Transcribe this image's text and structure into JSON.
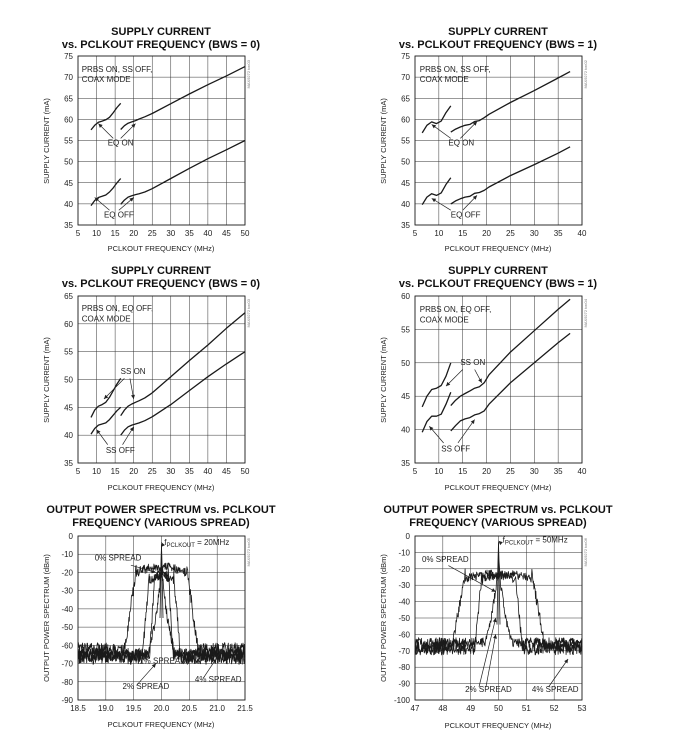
{
  "chart_data": [
    {
      "type": "line",
      "title": [
        "SUPPLY CURRENT",
        "vs. PCLKOUT FREQUENCY (BWS = 0)"
      ],
      "xlabel": "PCLKOUT FREQUENCY (MHz)",
      "ylabel": "SUPPLY CURRENT (mA)",
      "xlim": [
        5,
        50
      ],
      "ylim": [
        35,
        75
      ],
      "xticks": [
        5,
        10,
        15,
        20,
        25,
        30,
        35,
        40,
        45,
        50
      ],
      "yticks": [
        35,
        40,
        45,
        50,
        55,
        60,
        65,
        70,
        75
      ],
      "code": "MAX9272 toc03",
      "annotations": [
        {
          "text": "PRBS ON, SS OFF,",
          "x": 6,
          "y": 71.2
        },
        {
          "text": "COAX MODE",
          "x": 6,
          "y": 68.8
        },
        {
          "text": "EQ ON",
          "x": 13,
          "y": 53.8
        },
        {
          "text": "EQ OFF",
          "x": 12,
          "y": 36.8
        }
      ],
      "arrows": [
        {
          "from": [
            14.5,
            55.5
          ],
          "to": [
            10.5,
            59
          ]
        },
        {
          "from": [
            16.5,
            55.5
          ],
          "to": [
            20.5,
            59
          ]
        },
        {
          "from": [
            13.5,
            38.5
          ],
          "to": [
            9.5,
            41.5
          ]
        },
        {
          "from": [
            16,
            38.5
          ],
          "to": [
            20,
            41.5
          ]
        }
      ],
      "series": [
        {
          "x": [
            8.5,
            9.5,
            10.5,
            11.5,
            12.5,
            13.5,
            14.5,
            15.5,
            16.5
          ],
          "y": [
            57.5,
            58.6,
            59.3,
            59.6,
            59.9,
            60.5,
            61.6,
            62.8,
            63.8
          ]
        },
        {
          "x": [
            16.5,
            17.5,
            18.5,
            19.5,
            20.5,
            21.5,
            23,
            25,
            30,
            35,
            40,
            45,
            50
          ],
          "y": [
            57.6,
            58.5,
            59.1,
            59.4,
            59.7,
            60.1,
            60.6,
            61.4,
            63.7,
            66.0,
            68.2,
            70.3,
            72.5
          ]
        },
        {
          "x": [
            8.5,
            9.5,
            10.5,
            11.5,
            12.5,
            13.5,
            14.5,
            15.5,
            16.5
          ],
          "y": [
            39.6,
            40.8,
            41.5,
            41.8,
            42.1,
            42.8,
            43.8,
            45.0,
            46.0
          ]
        },
        {
          "x": [
            16.5,
            17.5,
            18.5,
            19.5,
            20.5,
            21.5,
            23,
            25,
            30,
            35,
            40,
            45,
            50
          ],
          "y": [
            39.9,
            40.9,
            41.6,
            41.9,
            42.2,
            42.4,
            42.8,
            43.6,
            46.0,
            48.4,
            50.7,
            52.8,
            55.0
          ]
        }
      ]
    },
    {
      "type": "line",
      "title": [
        "SUPPLY CURRENT",
        "vs. PCLKOUT FREQUENCY (BWS = 1)"
      ],
      "xlabel": "PCLKOUT FREQUENCY (MHz)",
      "ylabel": "SUPPLY CURRENT (mA)",
      "xlim": [
        5,
        40
      ],
      "ylim": [
        35,
        75
      ],
      "xticks": [
        5,
        10,
        15,
        20,
        25,
        30,
        35,
        40
      ],
      "yticks": [
        35,
        40,
        45,
        50,
        55,
        60,
        65,
        70,
        75
      ],
      "code": "MAX9272 toc02",
      "annotations": [
        {
          "text": "PRBS ON, SS OFF,",
          "x": 6,
          "y": 71.2
        },
        {
          "text": "COAX MODE",
          "x": 6,
          "y": 68.8
        },
        {
          "text": "EQ ON",
          "x": 12,
          "y": 53.8
        },
        {
          "text": "EQ OFF",
          "x": 12.5,
          "y": 36.8
        }
      ],
      "arrows": [
        {
          "from": [
            12.5,
            55.5
          ],
          "to": [
            8.5,
            58.8
          ]
        },
        {
          "from": [
            14.5,
            55.5
          ],
          "to": [
            18,
            59.5
          ]
        },
        {
          "from": [
            12.5,
            38.5
          ],
          "to": [
            8.5,
            41.3
          ]
        },
        {
          "from": [
            15,
            38.5
          ],
          "to": [
            18,
            42
          ]
        }
      ],
      "series": [
        {
          "x": [
            6.5,
            7.5,
            8.5,
            9.5,
            10.5,
            11.5,
            12.5
          ],
          "y": [
            56.8,
            58.6,
            59.4,
            59.0,
            59.6,
            61.6,
            63.2
          ]
        },
        {
          "x": [
            12.5,
            13.5,
            14.5,
            15.5,
            16.5,
            17.5,
            18.5,
            19.5,
            20.5,
            25,
            30,
            35,
            37.5
          ],
          "y": [
            57.0,
            57.7,
            58.2,
            58.6,
            58.8,
            59.5,
            59.7,
            60.4,
            61.2,
            64.0,
            66.8,
            69.8,
            71.3
          ]
        },
        {
          "x": [
            6.5,
            7.5,
            8.5,
            9.5,
            10.5,
            11.5,
            12.5
          ],
          "y": [
            39.8,
            41.6,
            42.4,
            42.0,
            42.6,
            44.6,
            46.2
          ]
        },
        {
          "x": [
            12.5,
            13.5,
            14.5,
            15.5,
            16.5,
            17.5,
            18.5,
            19.5,
            20.5,
            25,
            30,
            35,
            37.5
          ],
          "y": [
            40.0,
            40.7,
            41.2,
            41.6,
            41.8,
            42.5,
            42.7,
            43.2,
            44.0,
            46.7,
            49.3,
            52.0,
            53.5
          ]
        }
      ]
    },
    {
      "type": "line",
      "title": [
        "SUPPLY CURRENT",
        "vs. PCLKOUT FREQUENCY (BWS = 0)"
      ],
      "xlabel": "PCLKOUT FREQUENCY (MHz)",
      "ylabel": "SUPPLY CURRENT (mA)",
      "xlim": [
        5,
        50
      ],
      "ylim": [
        35,
        65
      ],
      "xticks": [
        5,
        10,
        15,
        20,
        25,
        30,
        35,
        40,
        45,
        50
      ],
      "yticks": [
        35,
        40,
        45,
        50,
        55,
        60,
        65
      ],
      "code": "MAX9272 toc03",
      "annotations": [
        {
          "text": "PRBS ON, EQ OFF,",
          "x": 6,
          "y": 62.3
        },
        {
          "text": "COAX MODE",
          "x": 6,
          "y": 60.4
        },
        {
          "text": "SS ON",
          "x": 16.5,
          "y": 51.0
        },
        {
          "text": "SS OFF",
          "x": 12.5,
          "y": 36.8
        }
      ],
      "arrows": [
        {
          "from": [
            17.5,
            50.2
          ],
          "to": [
            12,
            46.5
          ]
        },
        {
          "from": [
            19,
            50.2
          ],
          "to": [
            20,
            46.5
          ]
        },
        {
          "from": [
            13,
            38.3
          ],
          "to": [
            10,
            41
          ]
        },
        {
          "from": [
            17,
            38.3
          ],
          "to": [
            20,
            41.5
          ]
        }
      ],
      "series": [
        {
          "x": [
            8.5,
            9.5,
            10.5,
            11.5,
            12.5,
            13.5,
            14.5,
            15.5,
            16.5
          ],
          "y": [
            43.2,
            44.5,
            45.2,
            45.5,
            45.9,
            46.8,
            48.0,
            49.2,
            50.2
          ]
        },
        {
          "x": [
            16.5,
            17.5,
            18.5,
            19.5,
            20.5,
            21.5,
            23,
            25,
            30,
            35,
            40,
            45,
            50
          ],
          "y": [
            43.5,
            44.5,
            45.2,
            45.6,
            45.9,
            46.2,
            46.7,
            47.6,
            50.5,
            53.4,
            56.2,
            59.2,
            62.0
          ]
        },
        {
          "x": [
            8.5,
            9.5,
            10.5,
            11.5,
            12.5,
            13.5,
            14.5,
            15.5,
            16.5
          ],
          "y": [
            40.2,
            41.2,
            41.8,
            42.0,
            42.2,
            42.8,
            43.6,
            44.4,
            45.0
          ]
        },
        {
          "x": [
            16.5,
            17.5,
            18.5,
            19.5,
            20.5,
            21.5,
            23,
            25,
            30,
            35,
            40,
            45,
            50
          ],
          "y": [
            40.0,
            40.9,
            41.5,
            41.8,
            42.0,
            42.2,
            42.6,
            43.3,
            45.5,
            48.0,
            50.5,
            52.8,
            55.0
          ]
        }
      ]
    },
    {
      "type": "line",
      "title": [
        "SUPPLY CURRENT",
        "vs. PCLKOUT FREQUENCY (BWS = 1)"
      ],
      "xlabel": "PCLKOUT FREQUENCY (MHz)",
      "ylabel": "SUPPLY CURRENT (mA)",
      "xlim": [
        5,
        40
      ],
      "ylim": [
        35,
        60
      ],
      "xticks": [
        5,
        10,
        15,
        20,
        25,
        30,
        35,
        40
      ],
      "yticks": [
        35,
        40,
        45,
        50,
        55,
        60
      ],
      "code": "MAX9272 toc04",
      "annotations": [
        {
          "text": "PRBS ON, EQ OFF,",
          "x": 6,
          "y": 57.6
        },
        {
          "text": "COAX MODE",
          "x": 6,
          "y": 56.0
        },
        {
          "text": "SS ON",
          "x": 14.5,
          "y": 49.7
        },
        {
          "text": "SS OFF",
          "x": 10.5,
          "y": 36.7
        }
      ],
      "arrows": [
        {
          "from": [
            15,
            49
          ],
          "to": [
            11.5,
            46.5
          ]
        },
        {
          "from": [
            17.5,
            49
          ],
          "to": [
            19,
            47
          ]
        },
        {
          "from": [
            11,
            38
          ],
          "to": [
            8,
            40.5
          ]
        },
        {
          "from": [
            14,
            38
          ],
          "to": [
            17.5,
            41.5
          ]
        }
      ],
      "series": [
        {
          "x": [
            6.5,
            7.5,
            8.5,
            9.5,
            10.5,
            11.5,
            12.5
          ],
          "y": [
            43.4,
            45.0,
            46.0,
            46.2,
            46.6,
            48.0,
            50.0
          ]
        },
        {
          "x": [
            12.5,
            13.5,
            14.5,
            15.5,
            16.5,
            17.5,
            18.5,
            19.5,
            20.5,
            25,
            30,
            35,
            37.5
          ],
          "y": [
            43.6,
            44.4,
            45.0,
            45.4,
            45.8,
            46.2,
            46.4,
            47.0,
            48.2,
            51.6,
            54.8,
            58.0,
            59.5
          ]
        },
        {
          "x": [
            6.5,
            7.5,
            8.5,
            9.5,
            10.5,
            11.5,
            12.5
          ],
          "y": [
            39.6,
            41.2,
            42.0,
            42.0,
            42.3,
            43.8,
            45.6
          ]
        },
        {
          "x": [
            12.5,
            13.5,
            14.5,
            15.5,
            16.5,
            17.5,
            18.5,
            19.5,
            20.5,
            25,
            30,
            35,
            37.5
          ],
          "y": [
            39.8,
            40.6,
            41.3,
            41.6,
            41.8,
            42.2,
            42.4,
            42.8,
            43.8,
            47.0,
            50.0,
            53.0,
            54.4
          ]
        }
      ]
    },
    {
      "type": "line",
      "title": [
        "OUTPUT POWER SPECTRUM vs. PCLKOUT",
        "FREQUENCY (VARIOUS SPREAD)"
      ],
      "xlabel": "PCLKOUT FREQUENCY (MHz)",
      "ylabel": "OUTPUT POWER SPECTRUM (dBm)",
      "xlim": [
        18.5,
        21.5
      ],
      "ylim": [
        -90,
        0
      ],
      "xticks": [
        18.5,
        19.0,
        19.5,
        20.0,
        20.5,
        21.0,
        21.5
      ],
      "yticks": [
        0,
        -10,
        -20,
        -30,
        -40,
        -50,
        -60,
        -70,
        -80,
        -90
      ],
      "code": "MAX9272 toc05",
      "fpclk_label": {
        "prefix": "f",
        "sub": "PCLKOUT",
        "suffix": " = 20MHz",
        "x": 20.05,
        "y": -5
      },
      "annotations": [
        {
          "text": "0% SPREAD",
          "x": 18.8,
          "y": -13.5
        },
        {
          "text": "1% SPREAD",
          "x": 19.6,
          "y": -70
        },
        {
          "text": "2% SPREAD",
          "x": 19.3,
          "y": -84
        },
        {
          "text": "4% SPREAD",
          "x": 20.6,
          "y": -80
        }
      ],
      "arrows": [
        {
          "from": [
            20.03,
            -5.5
          ],
          "to": [
            20.0,
            -3.5
          ]
        },
        {
          "from": [
            19.45,
            -16
          ],
          "to": [
            19.9,
            -20
          ]
        },
        {
          "from": [
            19.6,
            -69
          ],
          "to": [
            19.55,
            -62
          ]
        },
        {
          "from": [
            19.55,
            -82
          ],
          "to": [
            19.9,
            -70
          ]
        },
        {
          "from": [
            20.75,
            -78
          ],
          "to": [
            21.1,
            -62
          ]
        }
      ],
      "spread_traces": [
        {
          "name": "0% SPREAD",
          "center": 20.0,
          "halfwidth": 0.02,
          "top": -5,
          "floor": -75
        },
        {
          "name": "1% SPREAD",
          "center": 20.0,
          "halfwidth": 0.12,
          "top": -20,
          "floor": -77
        },
        {
          "name": "2% SPREAD",
          "center": 20.0,
          "halfwidth": 0.22,
          "top": -22,
          "floor": -76
        },
        {
          "name": "4% SPREAD",
          "center": 20.0,
          "halfwidth": 0.45,
          "top": -17,
          "floor": -62
        }
      ]
    },
    {
      "type": "line",
      "title": [
        "OUTPUT POWER SPECTRUM vs. PCLKOUT",
        "FREQUENCY (VARIOUS SPREAD)"
      ],
      "xlabel": "PCLKOUT FREQUENCY (MHz)",
      "ylabel": "OUTPUT POWER SPECTRUM (dBm)",
      "xlim": [
        47,
        53
      ],
      "ylim": [
        -100,
        0
      ],
      "xticks": [
        47,
        48,
        49,
        50,
        51,
        52,
        53
      ],
      "yticks": [
        0,
        -10,
        -20,
        -30,
        -40,
        -50,
        -60,
        -70,
        -80,
        -90,
        -100
      ],
      "code": "MAX9272 toc06",
      "fpclk_label": {
        "prefix": "f",
        "sub": "PCLKOUT",
        "suffix": " = 50MHz",
        "x": 50.15,
        "y": -4
      },
      "annotations": [
        {
          "text": "0% SPREAD",
          "x": 47.25,
          "y": -16
        },
        {
          "text": "2% SPREAD",
          "x": 48.8,
          "y": -95
        },
        {
          "text": "4% SPREAD",
          "x": 51.2,
          "y": -95
        }
      ],
      "arrows": [
        {
          "from": [
            50.1,
            -4.5
          ],
          "to": [
            50.0,
            -3
          ]
        },
        {
          "from": [
            48.2,
            -18
          ],
          "to": [
            49.9,
            -34
          ]
        },
        {
          "from": [
            49.3,
            -92
          ],
          "to": [
            49.9,
            -50
          ]
        },
        {
          "from": [
            49.55,
            -92
          ],
          "to": [
            49.9,
            -60
          ]
        },
        {
          "from": [
            51.8,
            -92
          ],
          "to": [
            52.5,
            -75
          ]
        }
      ],
      "spread_traces": [
        {
          "name": "0% SPREAD",
          "center": 50.0,
          "halfwidth": 0.04,
          "top": -5,
          "floor": -84
        },
        {
          "name": "2% SPREAD",
          "center": 50.0,
          "halfwidth": 0.6,
          "top": -24,
          "floor": -86
        },
        {
          "name": "4% SPREAD",
          "center": 50.0,
          "halfwidth": 1.2,
          "top": -23,
          "floor": -80
        }
      ]
    }
  ]
}
